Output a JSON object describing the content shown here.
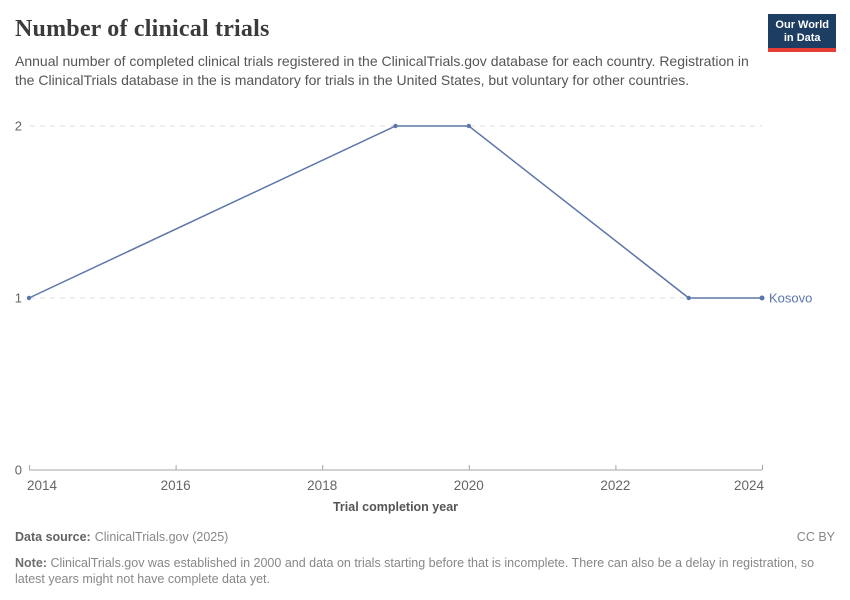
{
  "header": {
    "title": "Number of clinical trials",
    "subtitle": "Annual number of completed clinical trials registered in the ClinicalTrials.gov database for each country. Registration in the ClinicalTrials database in the is mandatory for trials in the United States, but voluntary for other countries.",
    "logo": {
      "line1": "Our World",
      "line2": "in Data"
    }
  },
  "chart_data": {
    "type": "line",
    "title": "Number of clinical trials",
    "xlabel": "Trial completion year",
    "ylabel": "",
    "series": [
      {
        "name": "Kosovo",
        "x": [
          2014,
          2019,
          2020,
          2023,
          2024
        ],
        "values": [
          1,
          2,
          2,
          1,
          1
        ],
        "color": "#5b76a9"
      }
    ],
    "x_ticks": [
      2014,
      2016,
      2018,
      2020,
      2022,
      2024
    ],
    "y_ticks": [
      0,
      1,
      2
    ],
    "xlim": [
      2014,
      2024
    ],
    "ylim": [
      0,
      2
    ],
    "grid": "horizontal-dashed",
    "legend": "end-of-line-label"
  },
  "footer": {
    "datasource_label": "Data source:",
    "datasource_value": "ClinicalTrials.gov (2025)",
    "license": "CC BY",
    "note_label": "Note:",
    "note_text": "ClinicalTrials.gov was established in 2000 and data on trials starting before that is incomplete. There can also be a delay in registration, so latest years might not have complete data yet."
  },
  "colors": {
    "series_blue": "#5b76a9",
    "logo_navy": "#1d3d63",
    "logo_red": "#e63e36",
    "title_text": "#3b3b3b",
    "subtitle_text": "#555555",
    "tick_text": "#666666",
    "axis_line": "#a5a5a5",
    "grid_line": "#dcdcdc",
    "footer_text": "#878787"
  }
}
